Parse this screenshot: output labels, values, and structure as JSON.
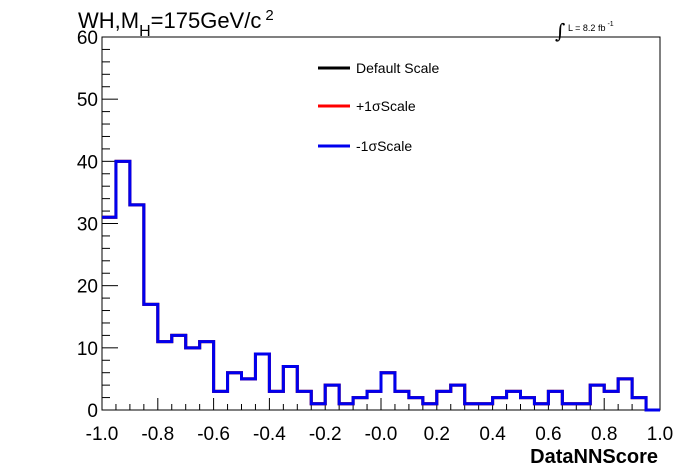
{
  "title": {
    "main": "WH,M",
    "subscript": "H",
    "mid": "=175GeV/c",
    "superscript": "2"
  },
  "luminosity": {
    "symbol": "∫",
    "text": "L = 8.2 fb",
    "superscript": "-1"
  },
  "chart_data": {
    "type": "histogram",
    "xlabel": "DataNNScore",
    "ylabel": "",
    "xlim": [
      -1.0,
      1.0
    ],
    "ylim": [
      0,
      60
    ],
    "x_ticks": [
      "-1.0",
      "-0.8",
      "-0.6",
      "-0.4",
      "-0.2",
      "-0.0",
      "0.2",
      "0.4",
      "0.6",
      "0.8",
      "1.0"
    ],
    "y_ticks": [
      "0",
      "10",
      "20",
      "30",
      "40",
      "50",
      "60"
    ],
    "bin_edges_range": [
      -1.0,
      1.0
    ],
    "bin_count": 40,
    "grid": false,
    "legend_position": "top-center",
    "series": [
      {
        "name": "Default Scale",
        "color": "#000000",
        "values": [
          31,
          40,
          33,
          17,
          11,
          12,
          10,
          11,
          3,
          6,
          5,
          9,
          3,
          7,
          3,
          1,
          4,
          1,
          2,
          3,
          6,
          3,
          2,
          1,
          3,
          4,
          1,
          1,
          2,
          3,
          2,
          1,
          3,
          1,
          1,
          4,
          3,
          5,
          2,
          0
        ]
      },
      {
        "name": "+1σScale",
        "color": "#ff0000",
        "values": [
          31,
          40,
          33,
          17,
          11,
          12,
          10,
          11,
          3,
          6,
          5,
          9,
          3,
          7,
          3,
          1,
          4,
          1,
          2,
          3,
          6,
          3,
          2,
          1,
          3,
          4,
          1,
          1,
          2,
          3,
          2,
          1,
          3,
          1,
          1,
          4,
          3,
          5,
          2,
          0
        ]
      },
      {
        "name": "-1σScale",
        "color": "#0000ee",
        "values": [
          31,
          40,
          33,
          17,
          11,
          12,
          10,
          11,
          3,
          6,
          5,
          9,
          3,
          7,
          3,
          1,
          4,
          1,
          2,
          3,
          6,
          3,
          2,
          1,
          3,
          4,
          1,
          1,
          2,
          3,
          2,
          1,
          3,
          1,
          1,
          4,
          3,
          5,
          2,
          0
        ]
      }
    ]
  }
}
